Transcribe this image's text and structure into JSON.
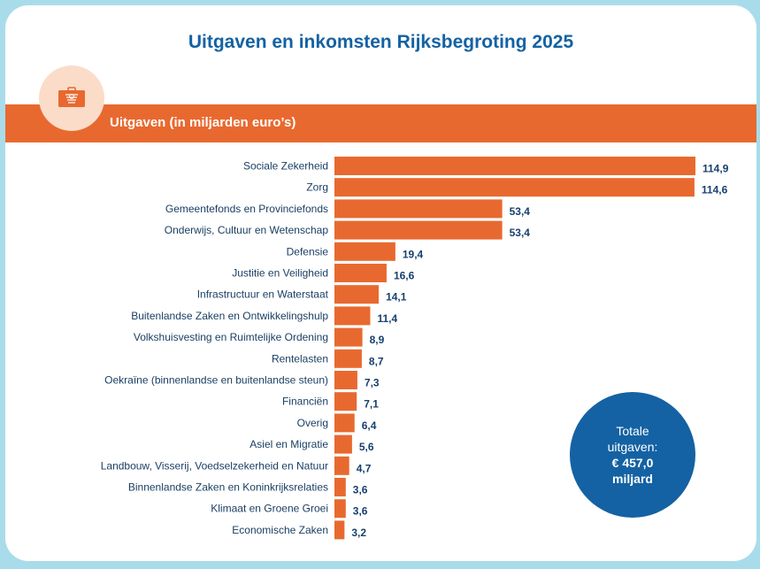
{
  "page": {
    "title": "Uitgaven en inkomsten Rijksbegroting 2025",
    "section_label": "Uitgaven (in miljarden euro’s)",
    "emblem_icon": "briefcase-crest-icon",
    "total": {
      "line1": "Totale",
      "line2": "uitgaven:",
      "amount": "€ 457,0",
      "unit": "miljard"
    }
  },
  "colors": {
    "bar": "#e8692f",
    "accent_blue": "#1462a3",
    "background": "#a9dcea"
  },
  "chart_data": {
    "type": "bar",
    "orientation": "horizontal",
    "title": "Uitgaven (in miljarden euro’s)",
    "xlabel": "",
    "ylabel": "",
    "xlim": [
      0,
      114.9
    ],
    "grid": false,
    "legend": "none",
    "categories": [
      "Sociale Zekerheid",
      "Zorg",
      "Gemeentefonds en Provinciefonds",
      "Onderwijs, Cultuur en Wetenschap",
      "Defensie",
      "Justitie en Veiligheid",
      "Infrastructuur en Waterstaat",
      "Buitenlandse Zaken en Ontwikkelingshulp",
      "Volkshuisvesting en Ruimtelijke Ordening",
      "Rentelasten",
      "Oekraïne (binnenlandse en buitenlandse steun)",
      "Financiën",
      "Overig",
      "Asiel en Migratie",
      "Landbouw, Visserij, Voedselzekerheid en Natuur",
      "Binnenlandse Zaken en Koninkrijksrelaties",
      "Klimaat en Groene Groei",
      "Economische Zaken"
    ],
    "values": [
      114.9,
      114.6,
      53.4,
      53.4,
      19.4,
      16.6,
      14.1,
      11.4,
      8.9,
      8.7,
      7.3,
      7.1,
      6.4,
      5.6,
      4.7,
      3.6,
      3.6,
      3.2
    ],
    "value_labels": [
      "114,9",
      "114,6",
      "53,4",
      "53,4",
      "19,4",
      "16,6",
      "14,1",
      "11,4",
      "8,9",
      "8,7",
      "7,3",
      "7,1",
      "6,4",
      "5,6",
      "4,7",
      "3,6",
      "3,6",
      "3,2"
    ]
  }
}
